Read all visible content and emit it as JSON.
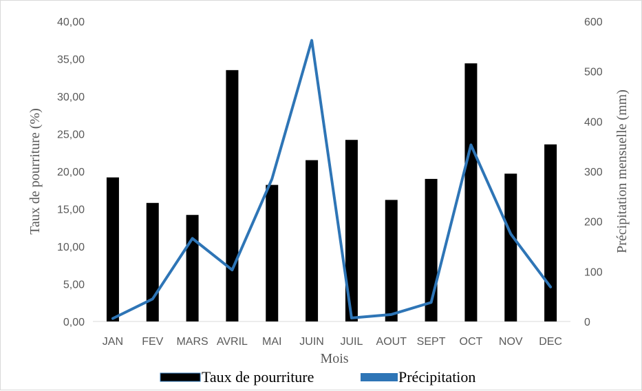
{
  "chart_data": {
    "type": "bar",
    "categories": [
      "JAN",
      "FEV",
      "MARS",
      "AVRIL",
      "MAI",
      "JUIN",
      "JUIL",
      "AOUT",
      "SEPT",
      "OCT",
      "NOV",
      "DEC"
    ],
    "series": [
      {
        "name": "Taux de pourriture",
        "type": "bar",
        "axis": "left",
        "color": "#000000",
        "values": [
          19.2,
          15.8,
          14.2,
          33.5,
          18.2,
          21.5,
          24.2,
          16.2,
          19.0,
          34.4,
          19.7,
          23.6
        ]
      },
      {
        "name": "Précipitation",
        "type": "line",
        "axis": "right",
        "color": "#2E75B6",
        "values": [
          6,
          45,
          166,
          103,
          285,
          562,
          7,
          14,
          38,
          353,
          175,
          69
        ]
      }
    ],
    "xlabel": "Mois",
    "ylabel": "Taux de pourriture (%)",
    "y2label": "Précipitation mensuelle (mm)",
    "ylim": [
      0,
      40
    ],
    "y2lim": [
      0,
      600
    ],
    "yticks": [
      "0,00",
      "5,00",
      "10,00",
      "15,00",
      "20,00",
      "25,00",
      "30,00",
      "35,00",
      "40,00"
    ],
    "y2ticks": [
      "0",
      "100",
      "200",
      "300",
      "400",
      "500",
      "600"
    ],
    "grid": false,
    "legend": "bottom"
  }
}
